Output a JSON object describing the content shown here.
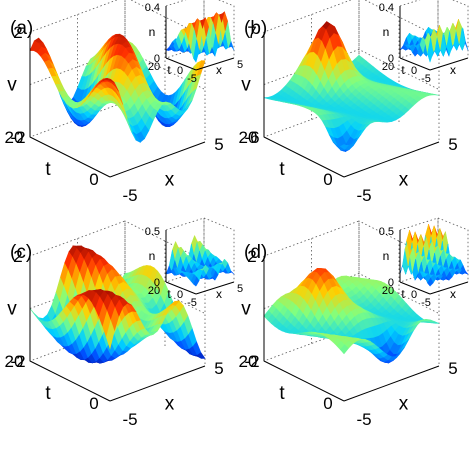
{
  "chart_data": [
    {
      "type": "surface",
      "panel_label": "(a)",
      "xlabel": "x",
      "ylabel": "t",
      "zlabel": "v",
      "xticks": [
        "-5",
        "5"
      ],
      "yticks": [
        "0",
        "20"
      ],
      "zticks": [
        "-2",
        "2"
      ],
      "xlim": [
        -5,
        5
      ],
      "ylim": [
        0,
        20
      ],
      "zlim": [
        -2,
        2
      ],
      "inset": {
        "zlabel": "n",
        "zticks": [
          "0",
          "0.4"
        ],
        "xlabel": "x",
        "ylabel": "t",
        "xticks": [
          "-5",
          "5"
        ],
        "yticks": [
          "0",
          "20"
        ]
      }
    },
    {
      "type": "surface",
      "panel_label": "(b)",
      "xlabel": "x",
      "ylabel": "t",
      "zlabel": "v",
      "xticks": [
        "-5",
        "5"
      ],
      "yticks": [
        "0",
        "20"
      ],
      "zticks": [
        "-6",
        "7"
      ],
      "xlim": [
        -5,
        5
      ],
      "ylim": [
        0,
        20
      ],
      "zlim": [
        -6,
        7
      ],
      "inset": {
        "zlabel": "n",
        "zticks": [
          "0",
          "0.4"
        ],
        "xlabel": "x",
        "ylabel": "t",
        "xticks": [
          "-5",
          "5"
        ],
        "yticks": [
          "0",
          "20"
        ]
      }
    },
    {
      "type": "surface",
      "panel_label": "(c)",
      "xlabel": "x",
      "ylabel": "t",
      "zlabel": "v",
      "xticks": [
        "-5",
        "5"
      ],
      "yticks": [
        "0",
        "20"
      ],
      "zticks": [
        "-2",
        "2"
      ],
      "xlim": [
        -5,
        5
      ],
      "ylim": [
        0,
        20
      ],
      "zlim": [
        -2,
        2
      ],
      "inset": {
        "zlabel": "n",
        "zticks": [
          "0",
          "0.5"
        ],
        "xlabel": "x",
        "ylabel": "t",
        "xticks": [
          "-5",
          "5"
        ],
        "yticks": [
          "0",
          "20"
        ]
      }
    },
    {
      "type": "surface",
      "panel_label": "(d)",
      "xlabel": "x",
      "ylabel": "t",
      "zlabel": "v",
      "xticks": [
        "-5",
        "5"
      ],
      "yticks": [
        "0",
        "20"
      ],
      "zticks": [
        "-2",
        "2"
      ],
      "xlim": [
        -5,
        5
      ],
      "ylim": [
        0,
        20
      ],
      "zlim": [
        -2,
        2
      ],
      "inset": {
        "zlabel": "n",
        "zticks": [
          "0",
          "0.5"
        ],
        "xlabel": "x",
        "ylabel": "t",
        "xticks": [
          "-5",
          "5"
        ],
        "yticks": [
          "0",
          "20"
        ]
      }
    }
  ],
  "colormap": [
    "#00008f",
    "#0050ff",
    "#00d0ff",
    "#80ff80",
    "#ffd000",
    "#ff3000",
    "#800000"
  ]
}
